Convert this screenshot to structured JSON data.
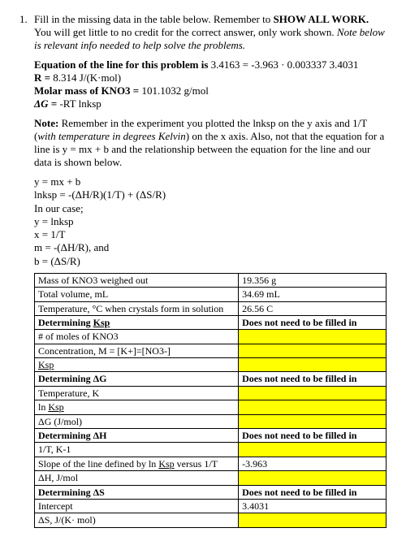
{
  "qnum": "1.",
  "intro": {
    "part1": "Fill in the missing data in the table below. Remember to ",
    "part2_bold": "SHOW ALL WORK.",
    "part3": " You will get little to no credit for the correct answer, only work shown. ",
    "part4_italic": "Note below is relevant info needed to help solve the problems."
  },
  "given": {
    "eq_label": "Equation of the line for this problem is",
    "eq_value": "3.4163 = -3.963 · 0.003337 3.4031",
    "R_label": "R =",
    "R_value": "8.314 J/(K·mol)",
    "mm_label": "Molar mass of KNO3 =",
    "mm_value": "101.1032 g/mol",
    "dG_label": "ΔG =",
    "dG_value": "-RT lnksp"
  },
  "note": {
    "bold": "Note:",
    "text1": " Remember in the experiment you plotted the lnksp on the y axis and 1/T  (",
    "italic": "with temperature in degrees Kelvin",
    "text2": ") on the x axis. Also, not that the equation for a line is y = mx + b and the relationship between the equation for the line and our data is shown below."
  },
  "eq": {
    "l1": "y = mx + b",
    "l2": "lnksp = -(ΔH/R)(1/T) + (ΔS/R)",
    "l3": "In our case;",
    "l4": "y = lnksp",
    "l5": "x = 1/T",
    "l6": "m = -(ΔH/R), and",
    "l7": "b = (ΔS/R)"
  },
  "table": {
    "no_fill": "Does not need to be filled in",
    "rows": [
      {
        "c1": "Mass of KNO3 weighed out",
        "c2": "19.356 g"
      },
      {
        "c1": "Total volume, mL",
        "c2": "34.69 mL"
      },
      {
        "c1": "Temperature, °C when crystals form in solution",
        "c2": "26.56 C"
      },
      {
        "c1_b": "Determining ",
        "c1_u": "Ksp",
        "c2_nofill": true
      },
      {
        "c1": "# of moles of KNO3",
        "c2_hl": true
      },
      {
        "c1": "Concentration, M = [K+]=[NO3-]",
        "c2_hl": true
      },
      {
        "c1_u_only": "Ksp",
        "c2_hl": true
      },
      {
        "c1_b": "Determining ΔG",
        "c2_nofill": true
      },
      {
        "c1": "Temperature, K",
        "c2_hl": true
      },
      {
        "c1_pre": "ln ",
        "c1_u": "Ksp",
        "c2_hl": true
      },
      {
        "c1": "ΔG (J/mol)",
        "c2_hl": true
      },
      {
        "c1_b": "Determining ΔH",
        "c2_nofill": true
      },
      {
        "c1": "1/T, K-1",
        "c2_hl": true
      },
      {
        "c1_pre": "Slope of the line defined by ln ",
        "c1_u": "Ksp",
        "c1_post": " versus 1/T",
        "c2": "-3.963"
      },
      {
        "c1": "ΔH, J/mol",
        "c2_hl": true
      },
      {
        "c1_b": "Determining ΔS",
        "c2_nofill": true
      },
      {
        "c1": "Intercept",
        "c2": "3.4031"
      },
      {
        "c1": "ΔS, J/(K· mol)",
        "c2_hl": true
      }
    ]
  }
}
